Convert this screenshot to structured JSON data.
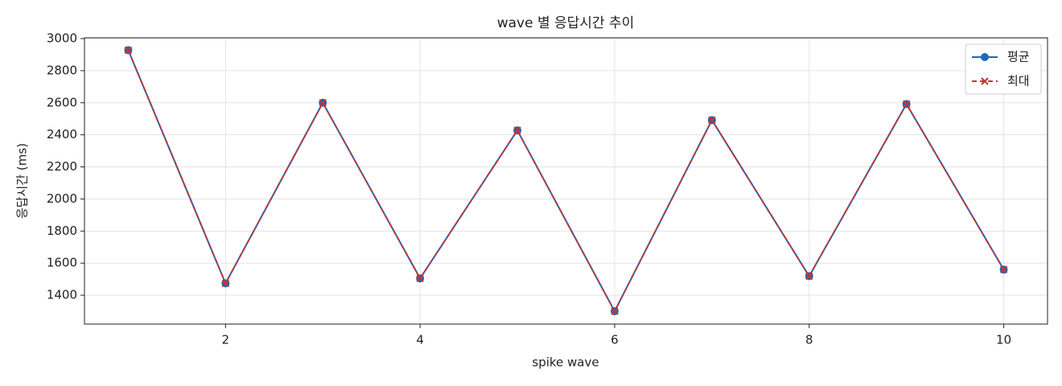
{
  "chart_data": {
    "type": "line",
    "title": "wave 별 응답시간 추이",
    "x_label": "spike wave",
    "y_label": "응답시간 (ms)",
    "x": [
      1,
      2,
      3,
      4,
      5,
      6,
      7,
      8,
      9,
      10
    ],
    "series": [
      {
        "name": "평균",
        "color": "#1f68b8",
        "marker": "o",
        "linestyle": "solid",
        "values": [
          2928,
          1474,
          2600,
          1505,
          2428,
          1300,
          2492,
          1519,
          2592,
          1560
        ]
      },
      {
        "name": "최대",
        "color": "#c83232",
        "marker": "x",
        "linestyle": "dashed",
        "values": [
          2928,
          1474,
          2600,
          1505,
          2428,
          1300,
          2492,
          1519,
          2592,
          1560
        ]
      }
    ],
    "xlim": [
      0.55,
      10.45
    ],
    "ylim": [
      1220,
      3005
    ],
    "xticks": [
      2,
      4,
      6,
      8,
      10
    ],
    "yticks": [
      1400,
      1600,
      1800,
      2000,
      2200,
      2400,
      2600,
      2800,
      3000
    ],
    "grid": true,
    "legend": "upper right"
  }
}
